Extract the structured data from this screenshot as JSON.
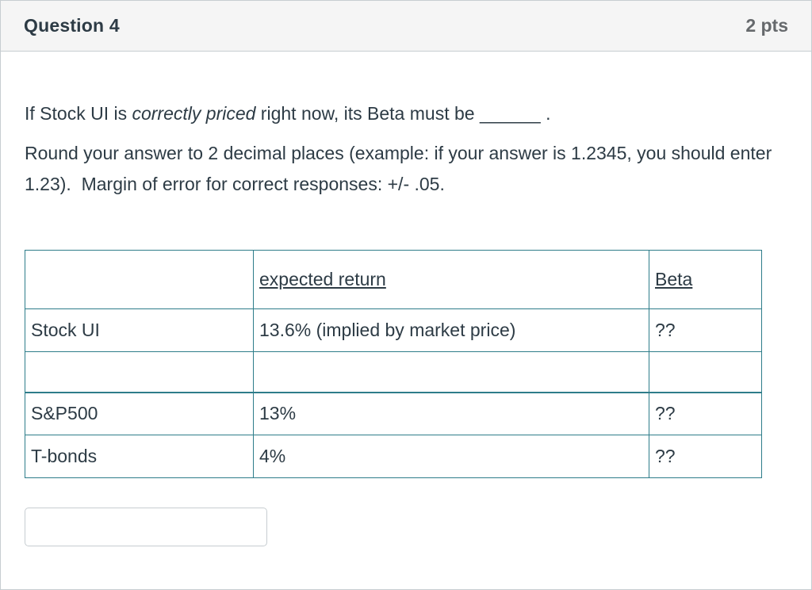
{
  "header": {
    "title": "Question 4",
    "points": "2 pts"
  },
  "question": {
    "line_prefix": "If Stock UI is ",
    "line_italic": "correctly priced",
    "line_suffix": " right now, its Beta must be ______ .",
    "instructions": "Round your answer to 2 decimal places (example: if your answer is 1.2345, you should enter 1.23).  Margin of error for correct responses: +/- .05."
  },
  "table": {
    "headers": [
      "",
      "expected return",
      "Beta"
    ],
    "rows": [
      {
        "label": "Stock UI",
        "expected_return": "13.6% (implied by market price)",
        "beta": "??"
      },
      {
        "label": "",
        "expected_return": "",
        "beta": ""
      },
      {
        "label": "S&P500",
        "expected_return": "13%",
        "beta": "??"
      },
      {
        "label": "T-bonds",
        "expected_return": "4%",
        "beta": "??"
      }
    ]
  },
  "answer_input": {
    "value": "",
    "placeholder": ""
  },
  "colors": {
    "table_border": "#2e7d8a",
    "card_border": "#c7cdd1",
    "header_bg": "#f5f5f5",
    "text": "#2d3b45",
    "points_text": "#66696c"
  }
}
